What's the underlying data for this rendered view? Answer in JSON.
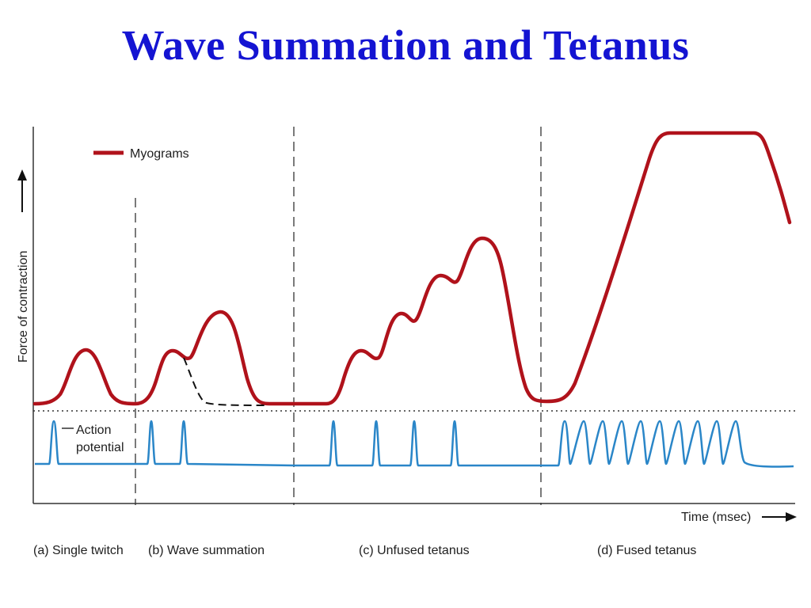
{
  "slide": {
    "title": "Wave Summation and Tetanus"
  },
  "figure": {
    "y_axis_label": "Force of contraction",
    "x_axis_label": "Time (msec)",
    "legend": {
      "myograms": "Myograms",
      "action_potential_line1": "Action",
      "action_potential_line2": "potential"
    },
    "panels": [
      {
        "label": "(a) Single twitch"
      },
      {
        "label": "(b) Wave summation"
      },
      {
        "label": "(c) Unfused tetanus"
      },
      {
        "label": "(d) Fused tetanus"
      }
    ],
    "colors": {
      "myogram": "#b0121b",
      "action_potential": "#2a86c8",
      "title": "#1414d2"
    }
  }
}
